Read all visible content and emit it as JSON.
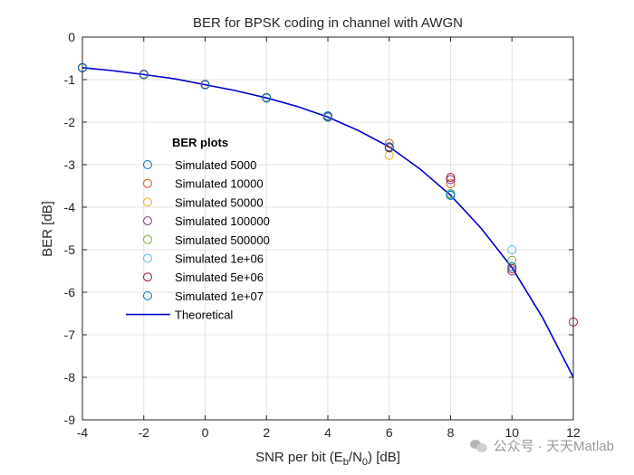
{
  "chart_data": {
    "type": "scatter",
    "title": "BER for BPSK coding in channel with AWGN",
    "xlabel_main": "SNR per bit (E",
    "xlabel_sub1": "b",
    "xlabel_mid": "/N",
    "xlabel_sub2": "0",
    "xlabel_end": ") [dB]",
    "ylabel": "BER [dB]",
    "xlim": [
      -4,
      12
    ],
    "ylim": [
      -9,
      0
    ],
    "xticks": [
      -4,
      -2,
      0,
      2,
      4,
      6,
      8,
      10,
      12
    ],
    "yticks": [
      0,
      -1,
      -2,
      -3,
      -4,
      -5,
      -6,
      -7,
      -8,
      -9
    ],
    "grid": true,
    "legend_title": "BER plots",
    "legend_position": "center-left",
    "series": [
      {
        "name": "Simulated 5000",
        "color": "#0072BD",
        "marker": "circle",
        "x": [
          -4,
          -2,
          0,
          2,
          4,
          6,
          8
        ],
        "y": [
          -0.72,
          -0.88,
          -1.12,
          -1.42,
          -1.85,
          -2.6,
          -3.72
        ]
      },
      {
        "name": "Simulated 10000",
        "color": "#D95319",
        "marker": "circle",
        "x": [
          -4,
          -2,
          0,
          2,
          4,
          6,
          8
        ],
        "y": [
          -0.72,
          -0.87,
          -1.11,
          -1.43,
          -1.88,
          -2.5,
          -3.45
        ]
      },
      {
        "name": "Simulated 50000",
        "color": "#EDB120",
        "marker": "circle",
        "x": [
          -4,
          -2,
          0,
          2,
          4,
          6,
          8
        ],
        "y": [
          -0.72,
          -0.88,
          -1.12,
          -1.43,
          -1.88,
          -2.78,
          -3.7
        ]
      },
      {
        "name": "Simulated 100000",
        "color": "#7E2F8E",
        "marker": "circle",
        "x": [
          -4,
          -2,
          0,
          2,
          4,
          6,
          8,
          10
        ],
        "y": [
          -0.72,
          -0.88,
          -1.12,
          -1.43,
          -1.87,
          -2.6,
          -3.35,
          -5.5
        ]
      },
      {
        "name": "Simulated 500000",
        "color": "#77AC30",
        "marker": "circle",
        "x": [
          -4,
          -2,
          0,
          2,
          4,
          6,
          8,
          10
        ],
        "y": [
          -0.72,
          -0.88,
          -1.12,
          -1.43,
          -1.88,
          -2.6,
          -3.68,
          -5.25
        ]
      },
      {
        "name": "Simulated 1e+06",
        "color": "#4DBEEE",
        "marker": "circle",
        "x": [
          -4,
          -2,
          0,
          2,
          4,
          6,
          8,
          10
        ],
        "y": [
          -0.72,
          -0.88,
          -1.12,
          -1.43,
          -1.88,
          -2.6,
          -3.7,
          -5.0
        ]
      },
      {
        "name": "Simulated 5e+06",
        "color": "#A2142F",
        "marker": "circle",
        "x": [
          -4,
          -2,
          0,
          2,
          4,
          6,
          8,
          10,
          12
        ],
        "y": [
          -0.72,
          -0.88,
          -1.12,
          -1.43,
          -1.88,
          -2.6,
          -3.3,
          -5.45,
          -6.7
        ]
      },
      {
        "name": "Simulated 1e+07",
        "color": "#0072BD",
        "marker": "circle",
        "x": [
          -4,
          -2,
          0,
          2,
          4,
          6,
          8,
          10
        ],
        "y": [
          -0.72,
          -0.88,
          -1.12,
          -1.43,
          -1.88,
          -2.58,
          -3.72,
          -5.4
        ]
      },
      {
        "name": "Theoretical",
        "color": "#0000CC",
        "marker": "line",
        "x": [
          -4,
          -3,
          -2,
          -1,
          0,
          1,
          2,
          3,
          4,
          5,
          6,
          7,
          8,
          9,
          10,
          11,
          12
        ],
        "y": [
          -0.72,
          -0.79,
          -0.88,
          -0.98,
          -1.12,
          -1.26,
          -1.43,
          -1.63,
          -1.88,
          -2.2,
          -2.58,
          -3.1,
          -3.72,
          -4.5,
          -5.42,
          -6.6,
          -8.0
        ]
      }
    ]
  },
  "watermark": {
    "text": "公众号 · 天天Matlab",
    "icon": "wechat-icon",
    "color": "#9a9a9a"
  }
}
